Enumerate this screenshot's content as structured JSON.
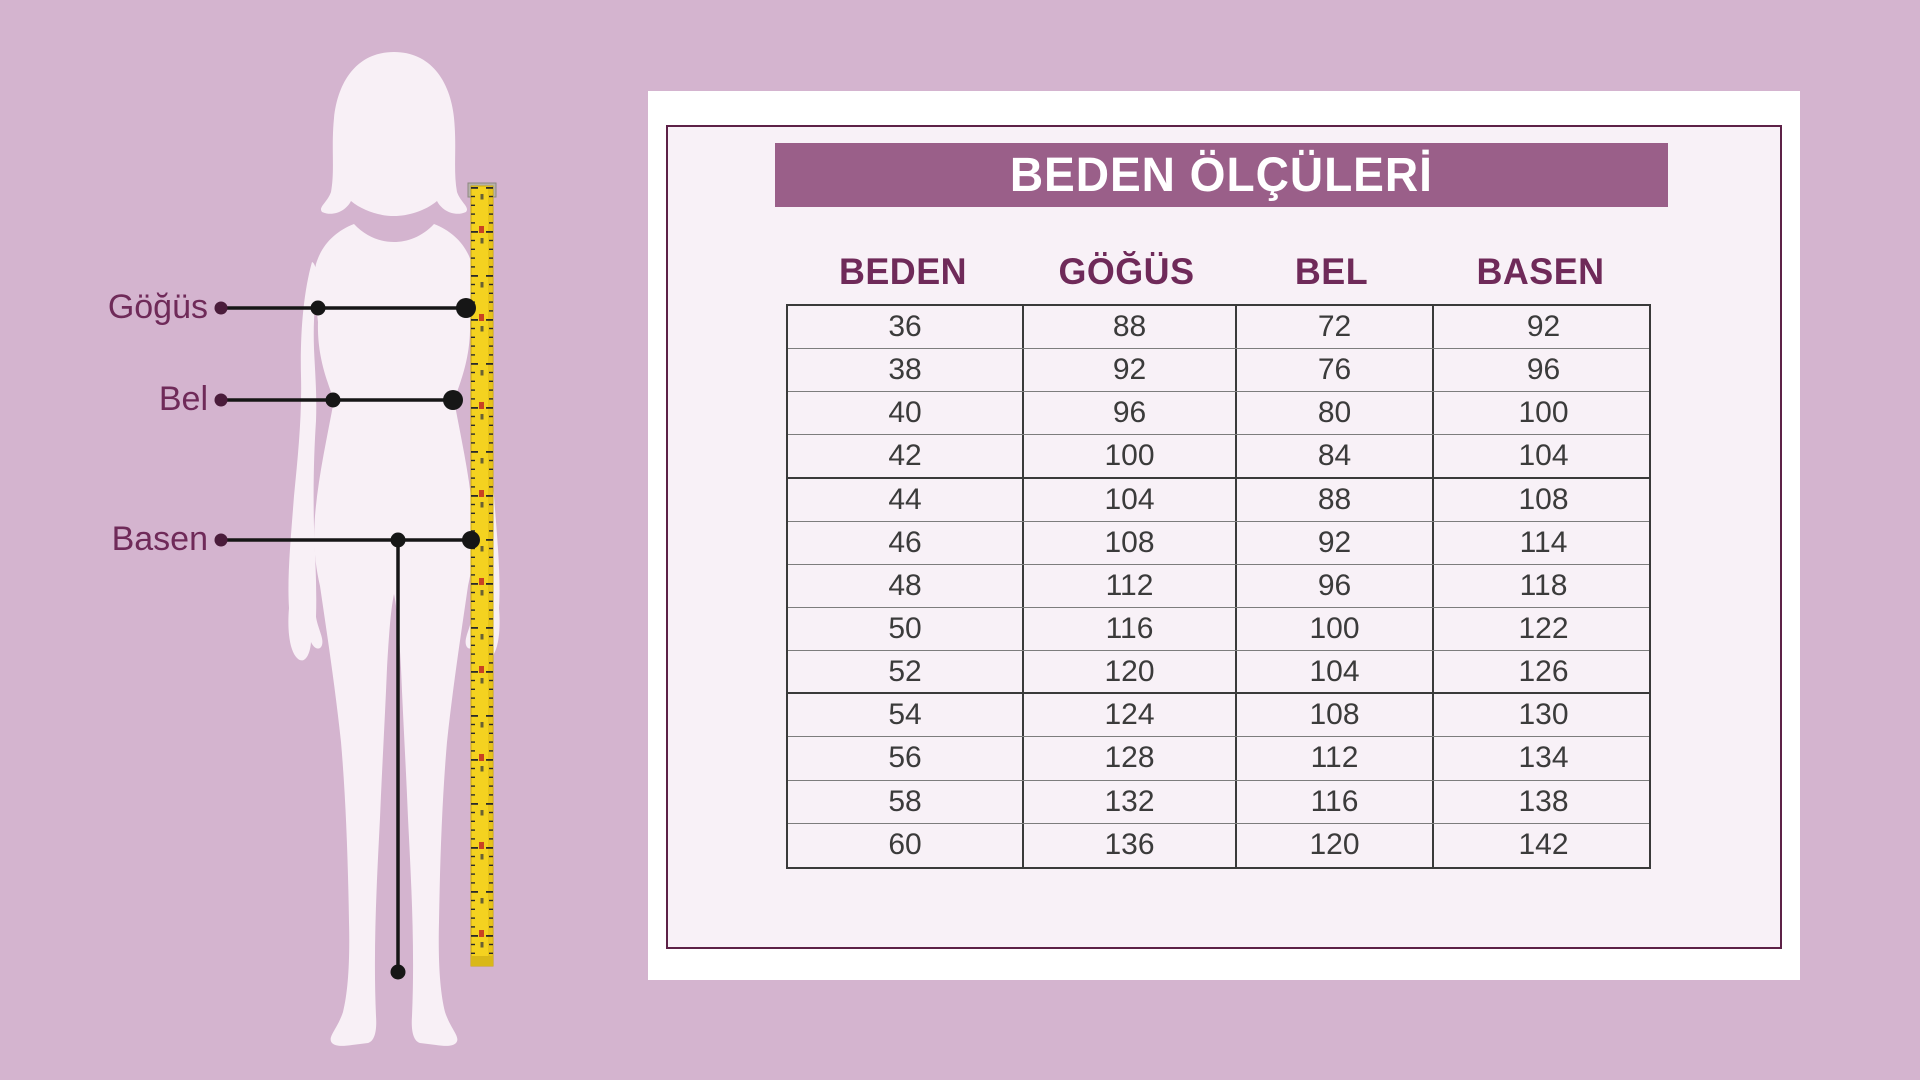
{
  "page": {
    "background_color": "#d4b4cf",
    "panel_bg": "#ffffff",
    "panel_inner_bg": "#f8f1f7"
  },
  "banner": {
    "title": "BEDEN ÖLÇÜLERİ",
    "bg_color": "#9a5f89",
    "text_color": "#ffffff"
  },
  "figure_labels": {
    "gogus": "Göğüs",
    "bel": "Bel",
    "basen": "Basen"
  },
  "icons": {
    "silhouette": "female-body-silhouette",
    "tape": "measuring-tape"
  },
  "colors": {
    "accent_plum": "#6f2a59",
    "label_dot": "#4a1c3b",
    "line_black": "#161616",
    "tape_yellow": "#f4d220",
    "inner_border": "#5d2147"
  },
  "size_table": {
    "headers": [
      "BEDEN",
      "GÖĞÜS",
      "BEL",
      "BASEN"
    ],
    "rows": [
      [
        36,
        88,
        72,
        92
      ],
      [
        38,
        92,
        76,
        96
      ],
      [
        40,
        96,
        80,
        100
      ],
      [
        42,
        100,
        84,
        104
      ],
      [
        44,
        104,
        88,
        108
      ],
      [
        46,
        108,
        92,
        114
      ],
      [
        48,
        112,
        96,
        118
      ],
      [
        50,
        116,
        100,
        122
      ],
      [
        52,
        120,
        104,
        126
      ],
      [
        54,
        124,
        108,
        130
      ],
      [
        56,
        128,
        112,
        134
      ],
      [
        58,
        132,
        116,
        138
      ],
      [
        60,
        136,
        120,
        142
      ]
    ]
  }
}
